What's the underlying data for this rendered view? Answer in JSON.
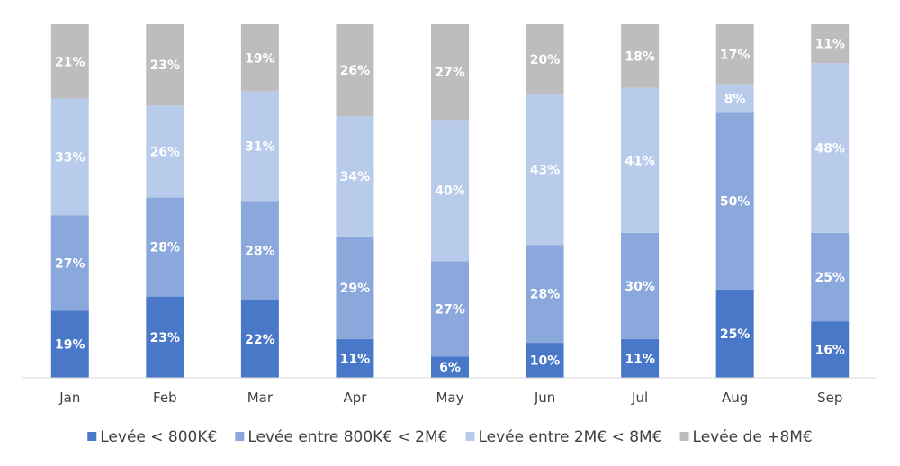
{
  "chart_data": {
    "type": "bar",
    "stacked": true,
    "normalized": true,
    "categories": [
      "Jan",
      "Feb",
      "Mar",
      "Apr",
      "May",
      "Jun",
      "Jul",
      "Aug",
      "Sep"
    ],
    "series": [
      {
        "name": "Levée < 800K€",
        "color": "#4a78c8",
        "values": [
          19,
          23,
          22,
          11,
          6,
          10,
          11,
          25,
          16
        ],
        "labels": [
          "19%",
          "23%",
          "22%",
          "11%",
          "6%",
          "10%",
          "11%",
          "25%",
          "16%"
        ]
      },
      {
        "name": "Levée entre 800K€ < 2M€",
        "color": "#8aa8db",
        "values": [
          27,
          28,
          28,
          29,
          27,
          28,
          30,
          50,
          25
        ],
        "labels": [
          "27%",
          "28%",
          "28%",
          "29%",
          "27%",
          "28%",
          "30%",
          "50%",
          "25%"
        ]
      },
      {
        "name": "Levée entre 2M€ < 8M€",
        "color": "#b8cbea",
        "values": [
          33,
          26,
          31,
          34,
          40,
          43,
          41,
          8,
          48
        ],
        "labels": [
          "33%",
          "26%",
          "31%",
          "34%",
          "40%",
          "43%",
          "41%",
          "8%",
          "48%"
        ]
      },
      {
        "name": "Levée de +8M€",
        "color": "#bdbdbd",
        "values": [
          21,
          23,
          19,
          26,
          27,
          20,
          18,
          17,
          11
        ],
        "labels": [
          "21%",
          "23%",
          "19%",
          "26%",
          "27%",
          "20%",
          "18%",
          "17%",
          "11%"
        ]
      }
    ],
    "ylim": [
      0,
      100
    ],
    "title": "",
    "xlabel": "",
    "ylabel": "",
    "grid": false,
    "legend_position": "bottom"
  }
}
